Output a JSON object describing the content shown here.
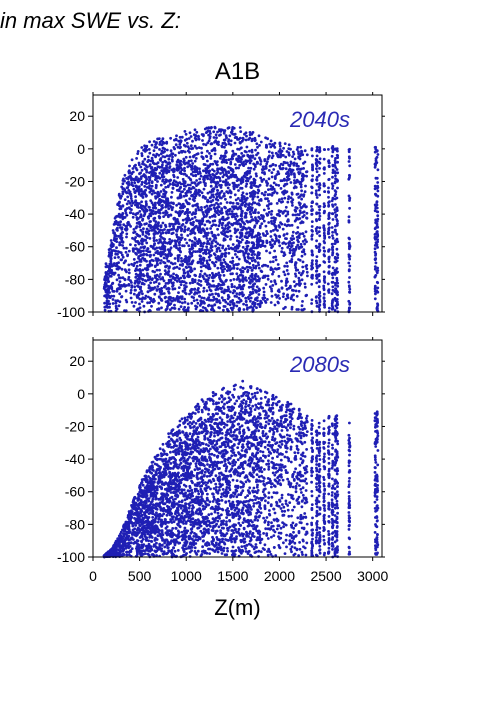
{
  "heading": "in max SWE vs. Z:",
  "scenario": "A1B",
  "point_color": "#1f1fb4",
  "chart_data": [
    {
      "type": "scatter",
      "panel_label": "2040s",
      "xlabel": "",
      "ylabel": "",
      "xlim": [
        0,
        3100
      ],
      "ylim": [
        -100,
        33
      ],
      "y_ticks": [
        20,
        0,
        -20,
        -40,
        -60,
        -80,
        -100
      ],
      "x_ticks": [],
      "upper_envelope": [
        [
          100,
          -78
        ],
        [
          200,
          -55
        ],
        [
          300,
          -20
        ],
        [
          400,
          -8
        ],
        [
          500,
          0
        ],
        [
          600,
          5
        ],
        [
          800,
          8
        ],
        [
          1000,
          11
        ],
        [
          1200,
          13
        ],
        [
          1400,
          14
        ],
        [
          1600,
          13
        ],
        [
          1800,
          8
        ],
        [
          2000,
          4
        ],
        [
          2200,
          2
        ],
        [
          2400,
          1
        ],
        [
          2600,
          2
        ],
        [
          2800,
          0
        ],
        [
          3050,
          2
        ]
      ],
      "point_columns_x": [
        2350,
        2400,
        2430,
        2480,
        2530,
        2570,
        2600,
        2620,
        2750,
        3030,
        3050
      ],
      "colors": {
        "points": "#1f1fb4",
        "label": "#2a2ab4"
      }
    },
    {
      "type": "scatter",
      "panel_label": "2080s",
      "xlabel": "Z(m)",
      "ylabel": "",
      "xlim": [
        0,
        3100
      ],
      "ylim": [
        -100,
        33
      ],
      "y_ticks": [
        20,
        0,
        -20,
        -40,
        -60,
        -80,
        -100
      ],
      "x_ticks": [
        0,
        500,
        1000,
        1500,
        2000,
        2500,
        3000
      ],
      "upper_envelope": [
        [
          100,
          -100
        ],
        [
          200,
          -95
        ],
        [
          300,
          -85
        ],
        [
          400,
          -70
        ],
        [
          500,
          -55
        ],
        [
          600,
          -45
        ],
        [
          700,
          -35
        ],
        [
          800,
          -25
        ],
        [
          1000,
          -12
        ],
        [
          1200,
          -2
        ],
        [
          1400,
          5
        ],
        [
          1600,
          8
        ],
        [
          1800,
          3
        ],
        [
          2000,
          -2
        ],
        [
          2200,
          -8
        ],
        [
          2400,
          -18
        ],
        [
          2600,
          -10
        ],
        [
          2800,
          -20
        ],
        [
          3050,
          -10
        ]
      ],
      "point_columns_x": [
        2350,
        2400,
        2430,
        2480,
        2530,
        2570,
        2600,
        2620,
        2750,
        3030,
        3050
      ],
      "colors": {
        "points": "#1f1fb4",
        "label": "#2a2ab4"
      }
    }
  ]
}
